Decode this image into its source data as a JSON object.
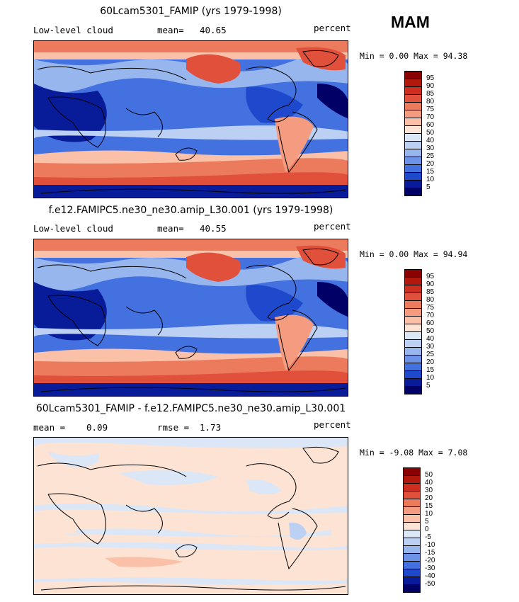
{
  "season": "MAM",
  "panels": [
    {
      "title": "60Lcam5301_FAMIP (yrs 1979-1998)",
      "left_label": "Low-level cloud",
      "stat_label": "mean=",
      "stat_value": "40.65",
      "stat2_label": "",
      "stat2_value": "",
      "units": "percent",
      "minmax": "Min =   0.00 Max =  94.38",
      "colorbar_labels": [
        "95",
        "90",
        "85",
        "80",
        "75",
        "70",
        "60",
        "50",
        "40",
        "30",
        "25",
        "20",
        "15",
        "10",
        "5"
      ],
      "colorbar_colors": [
        "#8b0000",
        "#b2180c",
        "#cd2f1e",
        "#e0503a",
        "#ec7a5c",
        "#f59c80",
        "#fbc0a8",
        "#fde3d4",
        "#dbe6f7",
        "#bcd0f3",
        "#98b6ee",
        "#6c93e8",
        "#4471e0",
        "#1f49cc",
        "#081c99",
        "#000066"
      ]
    },
    {
      "title": "f.e12.FAMIPC5.ne30_ne30.amip_L30.001 (yrs 1979-1998)",
      "left_label": "Low-level cloud",
      "stat_label": "mean=",
      "stat_value": "40.55",
      "stat2_label": "",
      "stat2_value": "",
      "units": "percent",
      "minmax": "Min =   0.00 Max =  94.94",
      "colorbar_labels": [
        "95",
        "90",
        "85",
        "80",
        "75",
        "70",
        "60",
        "50",
        "40",
        "30",
        "25",
        "20",
        "15",
        "10",
        "5"
      ],
      "colorbar_colors": [
        "#8b0000",
        "#b2180c",
        "#cd2f1e",
        "#e0503a",
        "#ec7a5c",
        "#f59c80",
        "#fbc0a8",
        "#fde3d4",
        "#dbe6f7",
        "#bcd0f3",
        "#98b6ee",
        "#6c93e8",
        "#4471e0",
        "#1f49cc",
        "#081c99",
        "#000066"
      ]
    },
    {
      "title": "60Lcam5301_FAMIP - f.e12.FAMIPC5.ne30_ne30.amip_L30.001",
      "left_label": "mean =",
      "stat_label": "0.09",
      "stat_value": "",
      "stat2_label": "rmse =",
      "stat2_value": "1.73",
      "units": "percent",
      "minmax": "Min =  -9.08 Max =   7.08",
      "colorbar_labels": [
        "50",
        "40",
        "30",
        "20",
        "15",
        "10",
        "5",
        "0",
        "-5",
        "-10",
        "-15",
        "-20",
        "-30",
        "-40",
        "-50"
      ],
      "colorbar_colors": [
        "#8b0000",
        "#b2180c",
        "#cd2f1e",
        "#e0503a",
        "#ec7a5c",
        "#f59c80",
        "#fbc0a8",
        "#fde3d4",
        "#dbe6f7",
        "#bcd0f3",
        "#98b6ee",
        "#6c93e8",
        "#4471e0",
        "#1f49cc",
        "#081c99",
        "#000066"
      ]
    }
  ]
}
